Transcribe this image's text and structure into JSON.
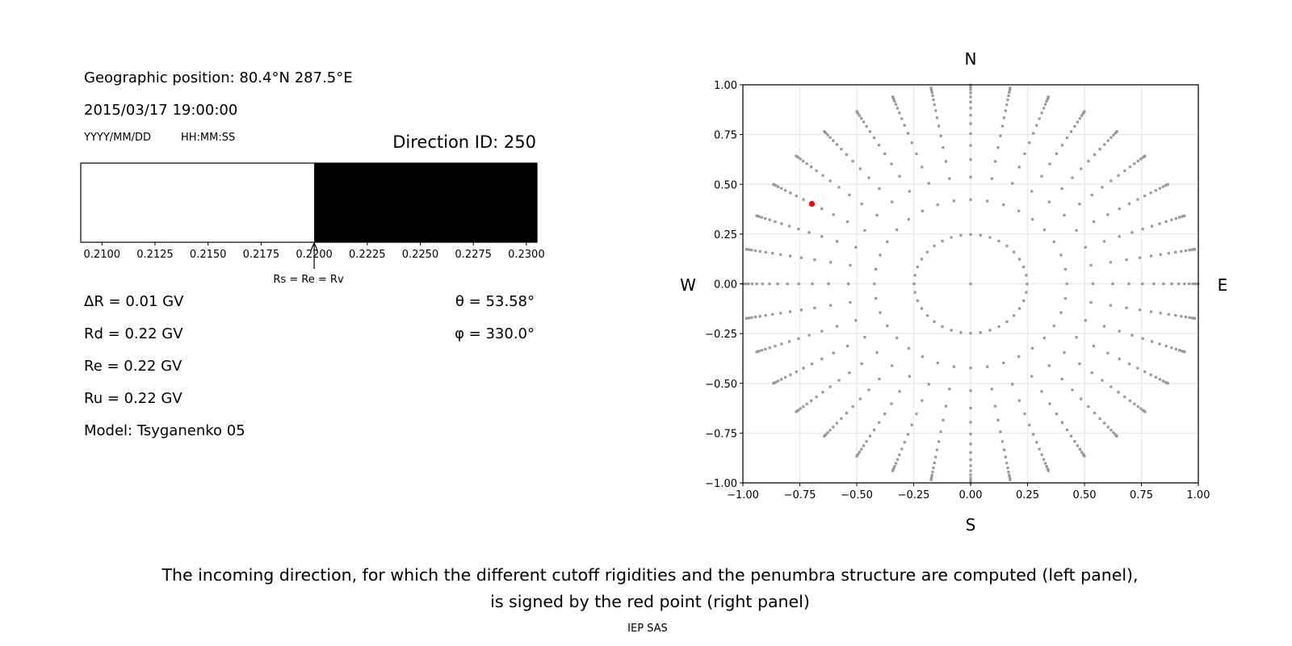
{
  "left_panel": {
    "geo_position": "Geographic position: 80.4°N 287.5°E",
    "datetime": "2015/03/17 19:00:00",
    "date_format_label": "YYYY/MM/DD",
    "time_format_label": "HH:MM:SS",
    "direction_id": "Direction ID: 250",
    "delta_r": "ΔR = 0.01 GV",
    "rd": "Rd = 0.22 GV",
    "re": "Re = 0.22 GV",
    "ru": "Ru = 0.22 GV",
    "model": "Model: Tsyganenko 05",
    "theta": "θ = 53.58°",
    "phi": "φ = 330.0°",
    "arrow_label": "Rs = Re = Rv"
  },
  "caption": {
    "line1": "The incoming direction, for which the different cutoff rigidities and the penumbra structure are computed (left panel),",
    "line2": "is signed by the red point (right panel)",
    "credit": "IEP SAS"
  },
  "chart_data": [
    {
      "type": "bar",
      "xlim": [
        0.209,
        0.2305
      ],
      "xticks": [
        "0.2100",
        "0.2125",
        "0.2150",
        "0.2175",
        "0.2200",
        "0.2225",
        "0.2250",
        "0.2275",
        "0.2300"
      ],
      "segments": [
        {
          "from": 0.209,
          "to": 0.22,
          "color": "#ffffff"
        },
        {
          "from": 0.22,
          "to": 0.2305,
          "color": "#000000"
        }
      ],
      "arrow_at": 0.22
    },
    {
      "type": "scatter",
      "xlim": [
        -1,
        1
      ],
      "ylim": [
        -1,
        1
      ],
      "xticks": [
        "−1.00",
        "−0.75",
        "−0.50",
        "−0.25",
        "0.00",
        "0.25",
        "0.50",
        "0.75",
        "1.00"
      ],
      "yticks": [
        "1.00",
        "0.75",
        "0.50",
        "0.25",
        "0.00",
        "−0.25",
        "−0.50",
        "−0.75",
        "−1.00"
      ],
      "grid": true,
      "direction_labels": {
        "north": "N",
        "south": "S",
        "west": "W",
        "east": "E"
      },
      "grid_points": {
        "center": [
          0,
          0
        ],
        "ring_cos_zenith": [
          0.96875,
          0.90625,
          0.84375,
          0.78125,
          0.71875,
          0.65625,
          0.59375,
          0.53125,
          0.46875,
          0.40625,
          0.34375,
          0.28125,
          0.21875,
          0.15625,
          0.09375,
          0.03125
        ],
        "azimuth_step_deg": 10,
        "color": "#999999"
      },
      "highlight_point": {
        "x": -0.697,
        "y": 0.402,
        "color": "#ff0000"
      }
    }
  ]
}
